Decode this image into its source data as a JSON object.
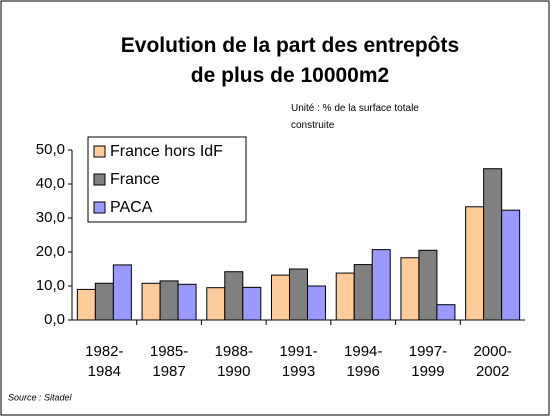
{
  "chart_data": {
    "type": "bar",
    "title": "Evolution de la part des entrepôts de plus de 10000m2",
    "subtitle": "Unité : % de la surface totale construite",
    "source": "Source : Sitadel",
    "categories": [
      "1982-\n1984",
      "1985-\n1987",
      "1988-\n1990",
      "1991-\n1993",
      "1994-\n1996",
      "1997-\n1999",
      "2000-\n2002"
    ],
    "series": [
      {
        "name": "France hors IdF",
        "color": "#ffcc99",
        "values": [
          9.0,
          10.8,
          9.5,
          13.2,
          13.8,
          18.3,
          33.3
        ]
      },
      {
        "name": "France",
        "color": "#808080",
        "values": [
          10.8,
          11.5,
          14.2,
          15.0,
          16.3,
          20.5,
          44.5
        ]
      },
      {
        "name": "PACA",
        "color": "#9999ff",
        "values": [
          16.2,
          10.5,
          9.6,
          10.0,
          20.7,
          4.5,
          32.3
        ]
      }
    ],
    "ylim": [
      0,
      50
    ],
    "yticks": [
      {
        "value": 0,
        "label": "0,0"
      },
      {
        "value": 10,
        "label": "10,0"
      },
      {
        "value": 20,
        "label": "20,0"
      },
      {
        "value": 30,
        "label": "30,0"
      },
      {
        "value": 40,
        "label": "40,0"
      },
      {
        "value": 50,
        "label": "50,0"
      }
    ],
    "grid": false,
    "legend": "upper left"
  }
}
